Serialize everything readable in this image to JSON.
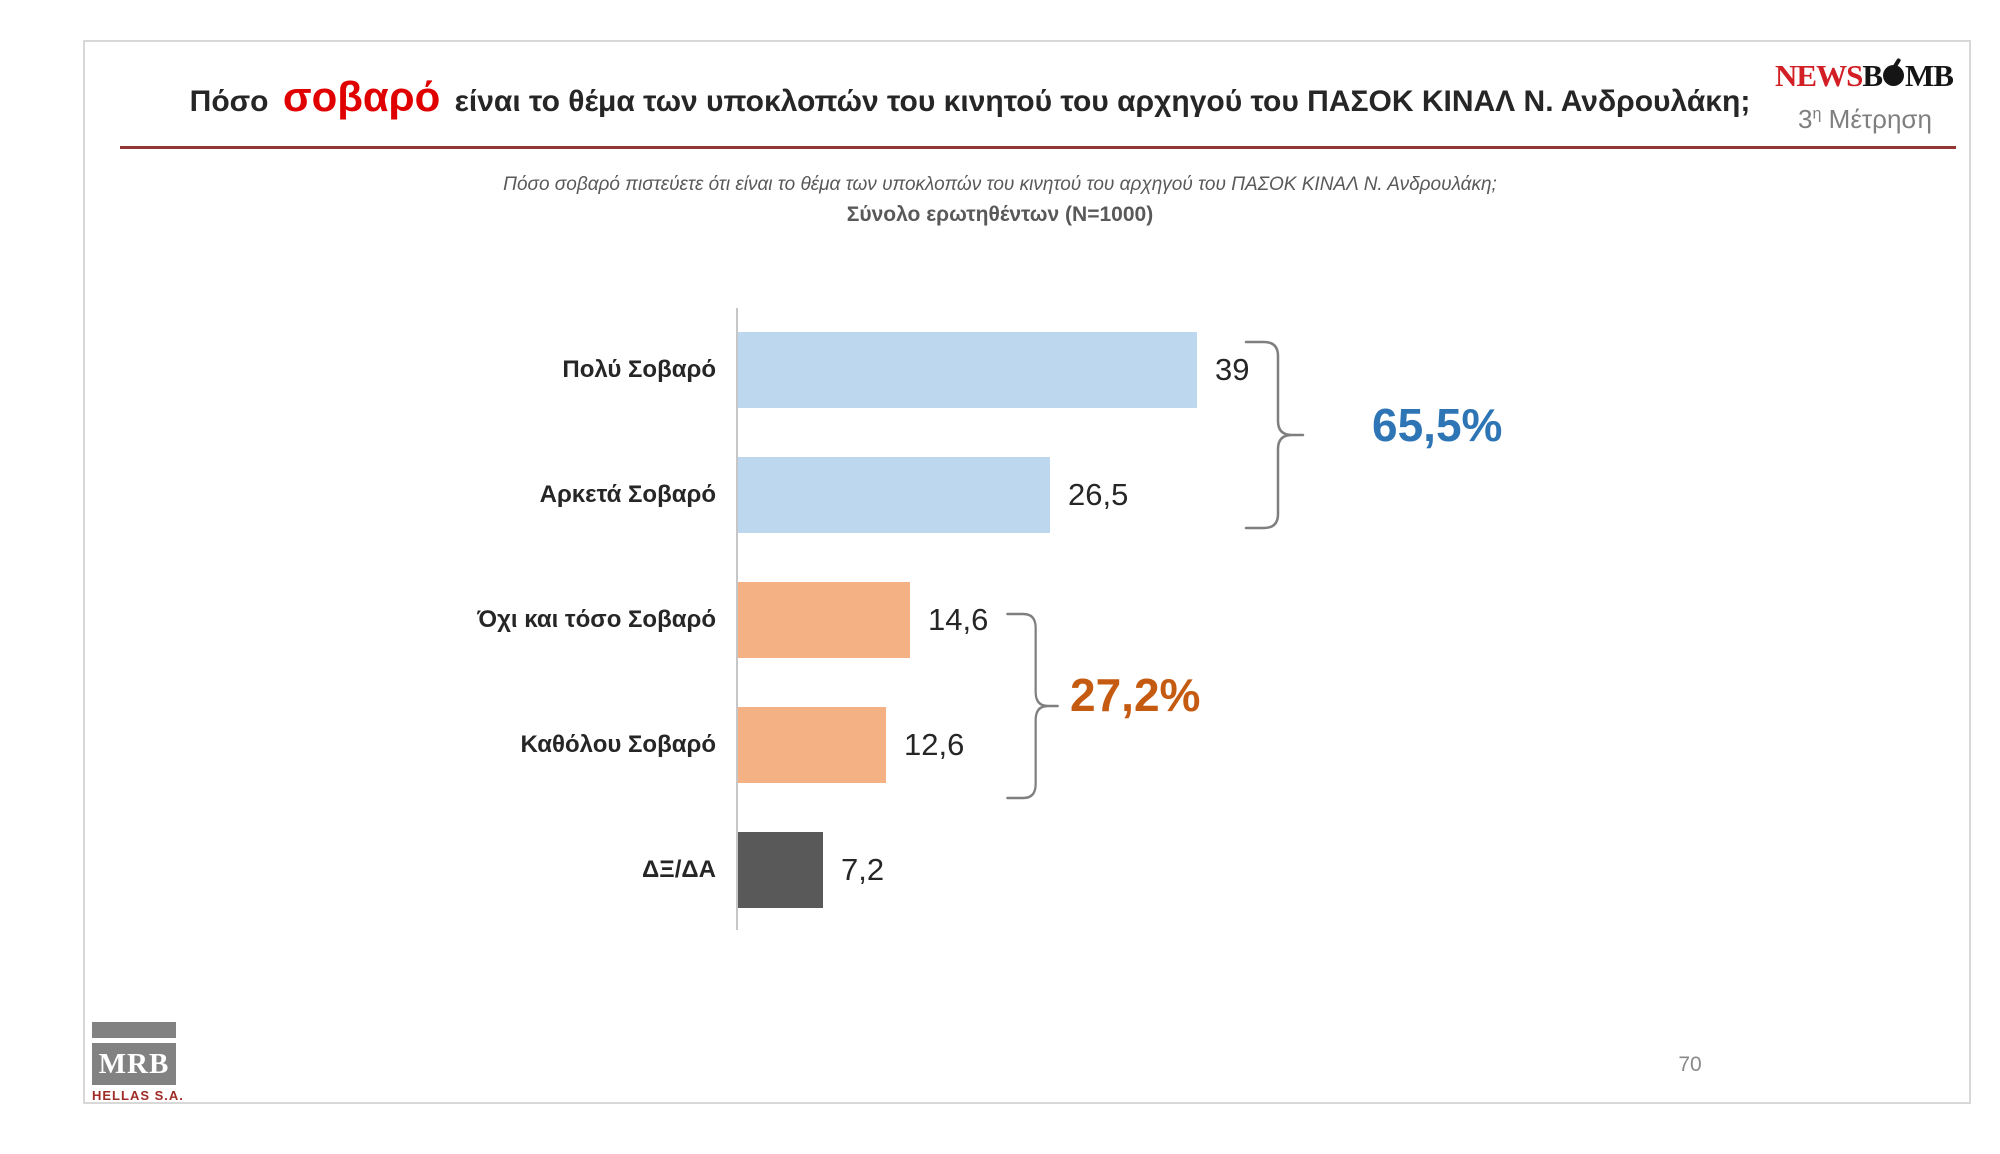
{
  "header": {
    "title_prefix": "Πόσο",
    "title_highlight": "σοβαρό",
    "title_suffix": "είναι το θέμα των υποκλοπών του κινητού του αρχηγού του ΠΑΣΟΚ ΚΙΝΑΛ Ν. Ανδρουλάκη;",
    "measurement": {
      "number": "3",
      "sup": "η",
      "word": "Μέτρηση"
    },
    "newsbomb": {
      "news": "NEWS",
      "b": "B",
      "mb": "MB"
    }
  },
  "subtitle": {
    "question": "Πόσο σοβαρό πιστεύετε ότι είναι το θέμα των υποκλοπών του κινητού του αρχηγού του ΠΑΣΟΚ ΚΙΝΑΛ Ν. Ανδρουλάκη;",
    "sample": "Σύνολο ερωτηθέντων (Ν=1000)"
  },
  "chart_data": {
    "type": "bar",
    "orientation": "horizontal",
    "title": "Πόσο σοβαρό είναι το θέμα των υποκλοπών του κινητού του αρχηγού του ΠΑΣΟΚ ΚΙΝΑΛ Ν. Ανδρουλάκη; (3η Μέτρηση)",
    "sample_note": "Σύνολο ερωτηθέντων (Ν=1000)",
    "categories": [
      "Πολύ Σοβαρό",
      "Αρκετά Σοβαρό",
      "Όχι και τόσο Σοβαρό",
      "Καθόλου Σοβαρό",
      "ΔΞ/ΔΑ"
    ],
    "values": [
      39,
      26.5,
      14.6,
      12.6,
      7.2
    ],
    "value_labels": [
      "39",
      "26,5",
      "14,6",
      "12,6",
      "7,2"
    ],
    "bar_colors": [
      "#BDD7EE",
      "#BDD7EE",
      "#F4B183",
      "#F4B183",
      "#595959"
    ],
    "xlim": [
      0,
      42
    ],
    "grid": false,
    "legend": "none",
    "groups": [
      {
        "label": "65,5%",
        "color": "#2E75B6",
        "bar_indexes": [
          0,
          1
        ]
      },
      {
        "label": "27,2%",
        "color": "#C55A11",
        "bar_indexes": [
          2,
          3
        ]
      }
    ]
  },
  "footer": {
    "page_number": "70",
    "mrb": {
      "name": "MRB",
      "subname": "HELLAS S.A."
    }
  },
  "colors": {
    "title_text": "#262626",
    "title_highlight": "#E00000",
    "underline": "#943634",
    "news_red": "#D21F26",
    "bomb_black": "#151515",
    "bracket": "#7F7F7F",
    "mrb_sub_red": "#9E2B25",
    "subtitle_gray": "#595959"
  }
}
